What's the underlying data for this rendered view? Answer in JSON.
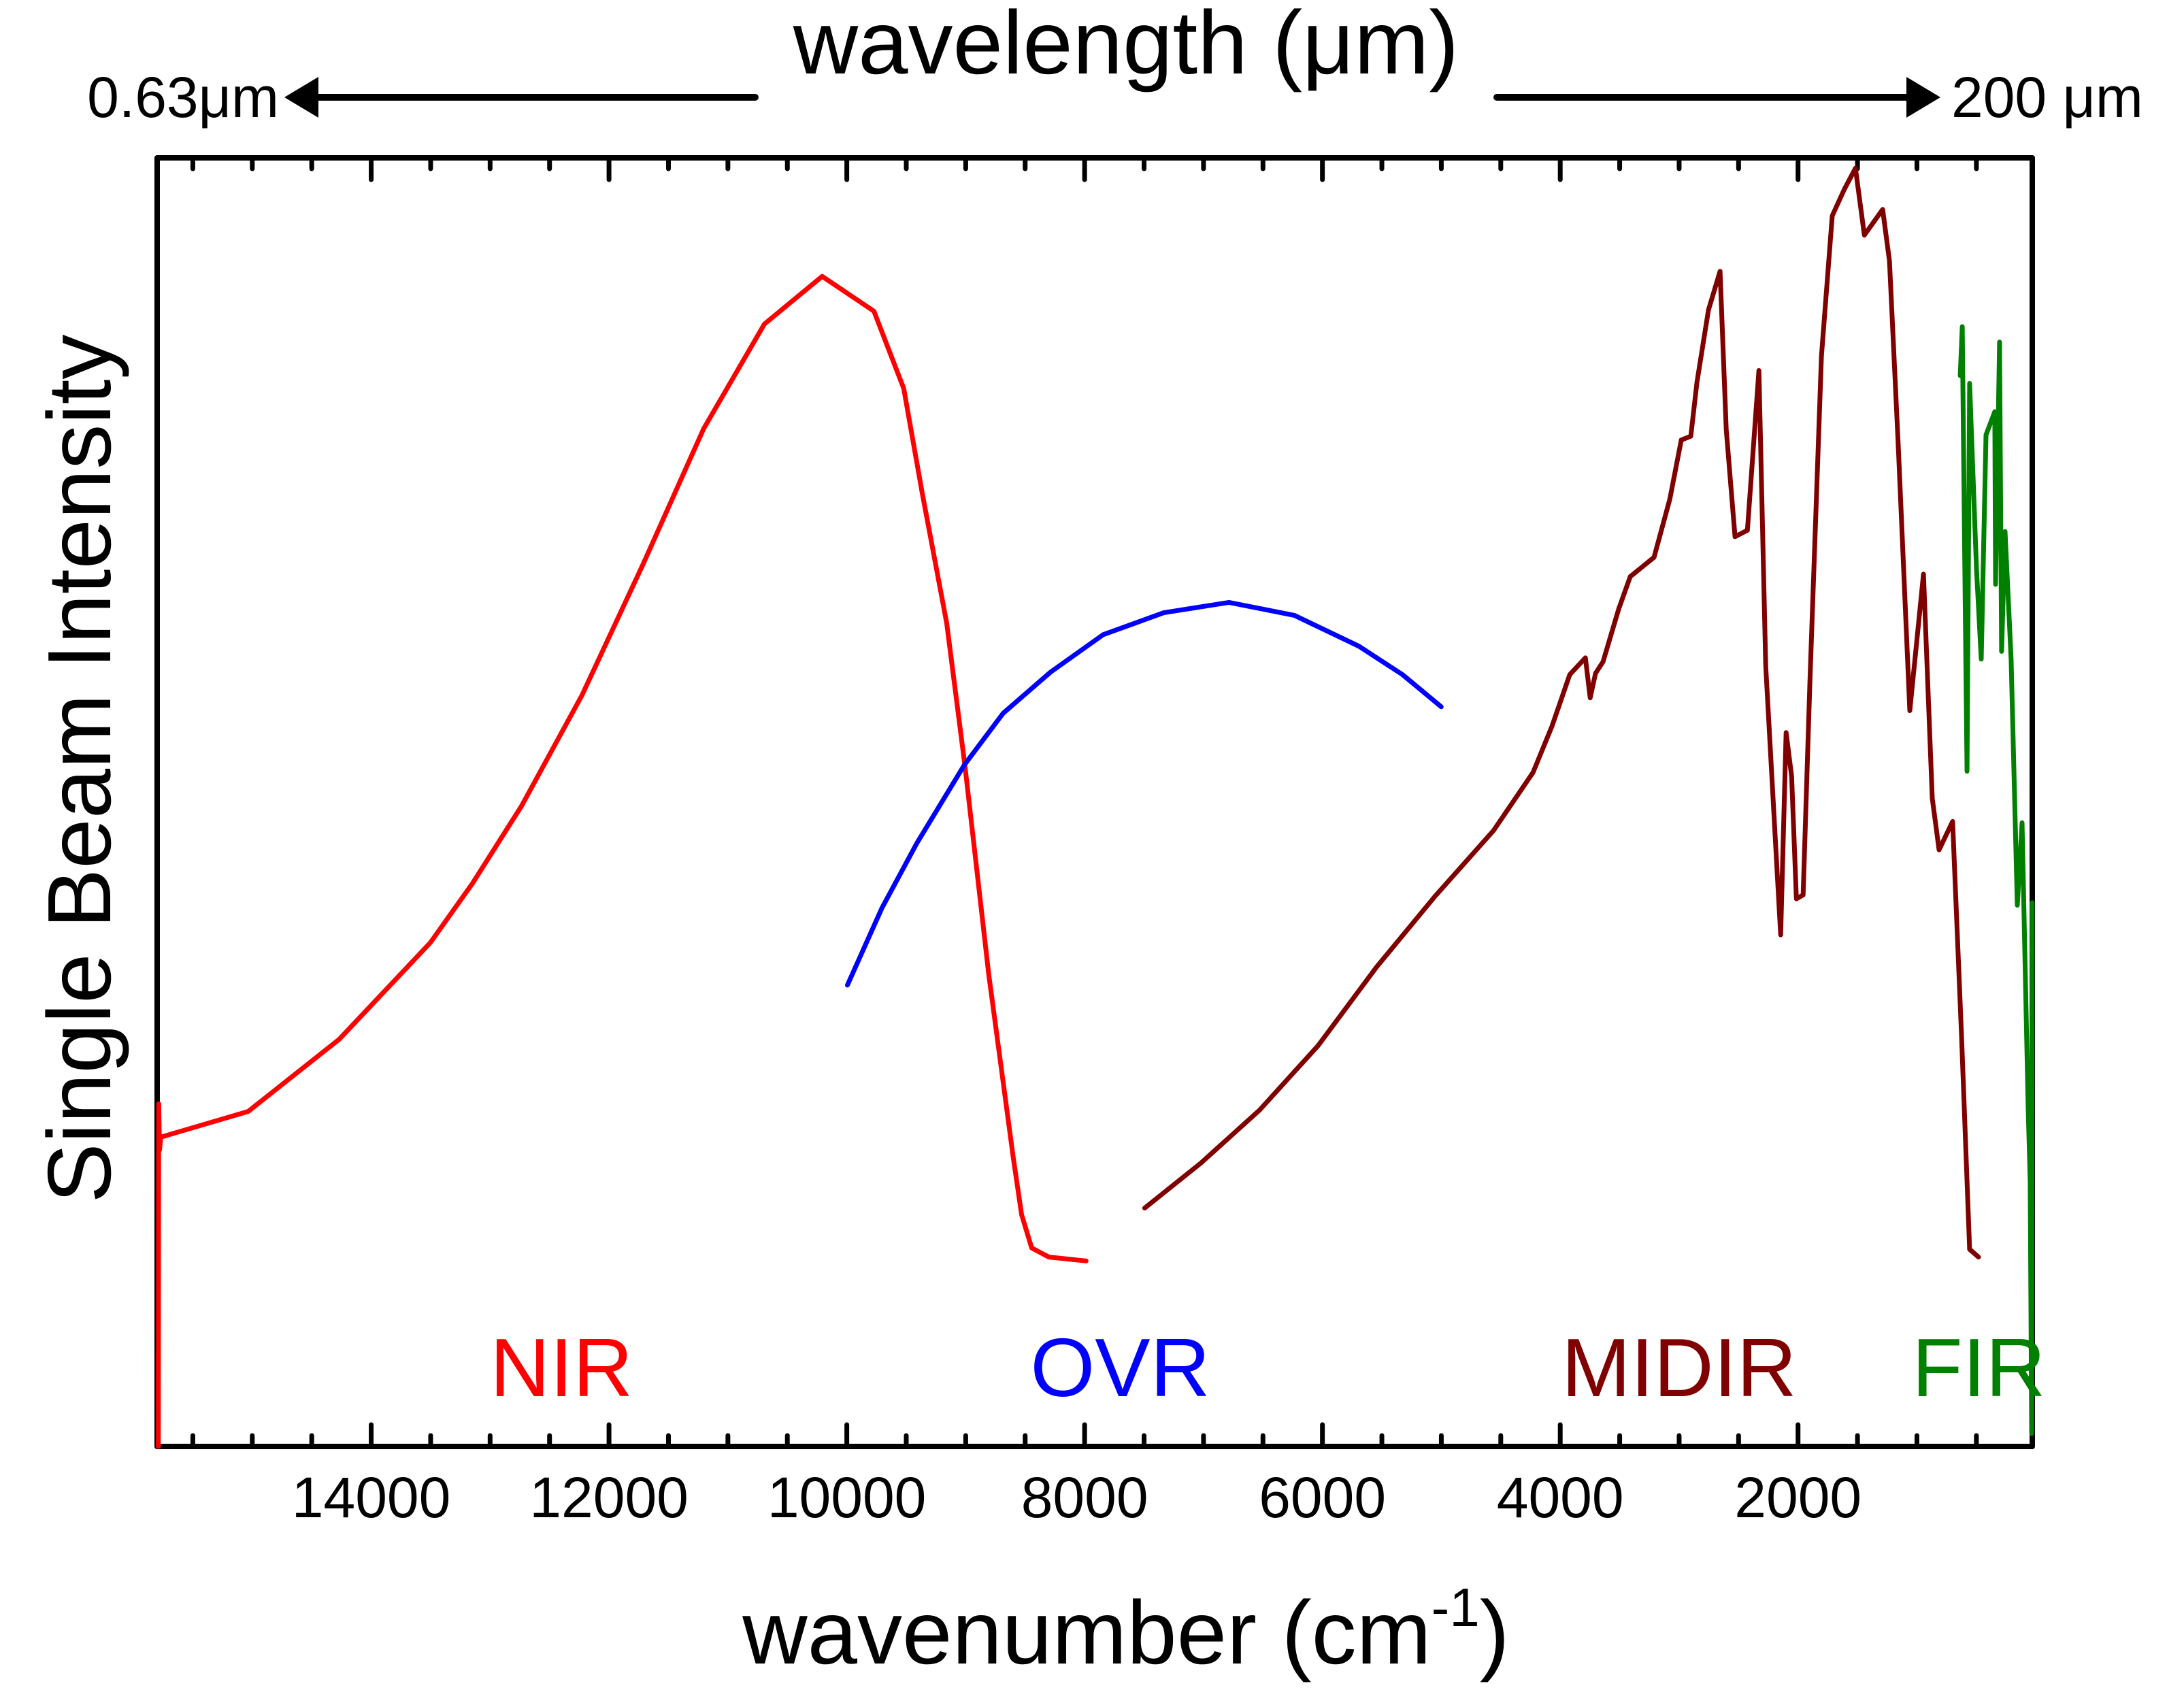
{
  "chart_data": {
    "type": "line",
    "title": "",
    "top_axis": {
      "label": "wavelength (μm)",
      "left_end_label": "0.63μm",
      "right_end_label": "200 μm"
    },
    "xlabel": "wavenumber (cm",
    "xlabel_superscript": "-1",
    "xlabel_suffix": ")",
    "ylabel": "Single Beam Intensity",
    "xlim": [
      15800,
      30
    ],
    "x_reversed": true,
    "ylim": [
      0,
      1
    ],
    "y_units": "arbitrary (normalized)",
    "x_major_ticks": [
      14000,
      12000,
      10000,
      8000,
      6000,
      4000,
      2000
    ],
    "x_tick_labels": [
      "14000",
      "12000",
      "10000",
      "8000",
      "6000",
      "4000",
      "2000"
    ],
    "x_minor_step": 500,
    "grid": false,
    "legend": "none (inline labels at bottom)",
    "series": [
      {
        "name": "NIR",
        "label": "NIR",
        "color": "#ff0000",
        "label_x": 12400,
        "x": [
          15790,
          15787,
          15780,
          15770,
          15035,
          14269,
          13502,
          13148,
          12736,
          12227,
          11717,
          11203,
          10693,
          10207,
          9772,
          9521,
          9366,
          9160,
          9006,
          8806,
          8600,
          8530,
          8445,
          8300,
          7987
        ],
        "y": [
          0.0,
          0.266,
          0.23,
          0.24,
          0.26,
          0.316,
          0.391,
          0.437,
          0.497,
          0.583,
          0.684,
          0.79,
          0.871,
          0.908,
          0.881,
          0.821,
          0.74,
          0.639,
          0.528,
          0.366,
          0.224,
          0.18,
          0.154,
          0.147,
          0.144
        ]
      },
      {
        "name": "OVR",
        "label": "OVR",
        "color": "#0000ff",
        "label_x": 7700,
        "x": [
          9995,
          9704,
          9412,
          9011,
          8685,
          8285,
          7844,
          7335,
          6786,
          6237,
          5693,
          5327,
          5001
        ],
        "y": [
          0.358,
          0.418,
          0.468,
          0.529,
          0.569,
          0.601,
          0.63,
          0.647,
          0.655,
          0.645,
          0.621,
          0.599,
          0.574
        ]
      },
      {
        "name": "MIDIR",
        "label": "MIDIR",
        "color": "#800000",
        "label_x": 3000,
        "x": [
          7495,
          7021,
          6529,
          6037,
          5545,
          5053,
          4561,
          4229,
          4069,
          3920,
          3788,
          3748,
          3703,
          3640,
          3508,
          3411,
          3211,
          3079,
          2982,
          2902,
          2850,
          2753,
          2656,
          2604,
          2530,
          2426,
          2329,
          2272,
          2186,
          2146,
          2100,
          2054,
          2014,
          1957,
          1900,
          1803,
          1712,
          1614,
          1517,
          1442,
          1288,
          1231,
          1157,
          1060,
          945,
          871,
          814,
          700,
          625,
          557,
          482
        ],
        "y": [
          0.185,
          0.22,
          0.261,
          0.311,
          0.372,
          0.427,
          0.478,
          0.523,
          0.559,
          0.599,
          0.612,
          0.581,
          0.6,
          0.609,
          0.65,
          0.675,
          0.69,
          0.735,
          0.781,
          0.784,
          0.826,
          0.882,
          0.912,
          0.789,
          0.706,
          0.711,
          0.835,
          0.606,
          0.463,
          0.397,
          0.554,
          0.52,
          0.425,
          0.428,
          0.594,
          0.846,
          0.955,
          0.975,
          0.992,
          0.94,
          0.96,
          0.92,
          0.777,
          0.571,
          0.677,
          0.503,
          0.463,
          0.485,
          0.319,
          0.153,
          0.147
        ]
      },
      {
        "name": "FIR",
        "label": "FIR",
        "color": "#008000",
        "label_x": 480,
        "x": [
          636,
          619,
          596,
          579,
          557,
          499,
          459,
          419,
          345,
          339,
          305,
          288,
          259,
          208,
          156,
          116,
          65,
          48,
          35,
          31
        ],
        "y": [
          0.831,
          0.869,
          0.669,
          0.524,
          0.825,
          0.681,
          0.611,
          0.785,
          0.803,
          0.669,
          0.857,
          0.617,
          0.71,
          0.611,
          0.42,
          0.484,
          0.264,
          0.206,
          0.01,
          0.422
        ]
      }
    ]
  }
}
